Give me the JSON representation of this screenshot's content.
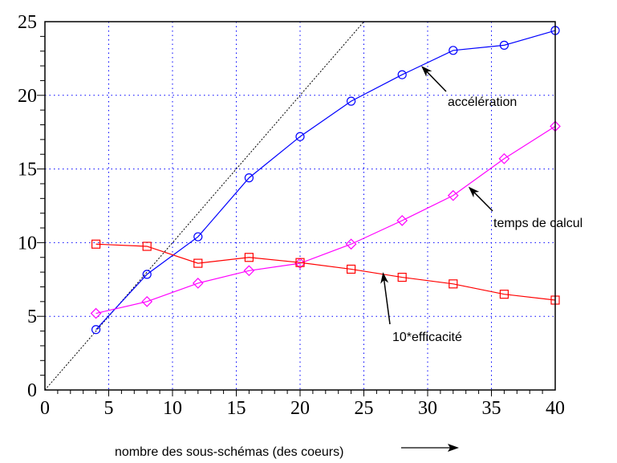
{
  "chart_data": {
    "type": "line",
    "title": "",
    "xlabel": "nombre des sous-schémas (des coeurs)",
    "ylabel": "",
    "xlim": [
      0,
      40
    ],
    "ylim": [
      0,
      25
    ],
    "grid": true,
    "xticks": [
      "0",
      "5",
      "10",
      "15",
      "20",
      "25",
      "30",
      "35",
      "40"
    ],
    "yticks": [
      "0",
      "5",
      "10",
      "15",
      "20",
      "25"
    ],
    "x": [
      4,
      8,
      12,
      16,
      20,
      24,
      28,
      32,
      36,
      40
    ],
    "series": [
      {
        "name": "accélération",
        "marker": "circle",
        "color": "#0000ff",
        "values": [
          4.1,
          7.85,
          10.4,
          14.4,
          17.2,
          19.6,
          21.4,
          23.05,
          23.4,
          24.4
        ]
      },
      {
        "name": "temps de calcul",
        "marker": "diamond",
        "color": "#ff00ff",
        "values": [
          5.2,
          6.0,
          7.25,
          8.1,
          8.6,
          9.9,
          11.5,
          13.2,
          15.7,
          17.9
        ]
      },
      {
        "name": "10*efficacité",
        "marker": "square",
        "color": "#ff0000",
        "values": [
          9.9,
          9.75,
          8.6,
          9.0,
          8.65,
          8.2,
          7.65,
          7.2,
          6.5,
          6.1
        ]
      }
    ],
    "reference_line": {
      "name": "y = x",
      "x": [
        0,
        25
      ],
      "y": [
        0,
        25
      ],
      "color": "#000000"
    },
    "annotations": [
      {
        "text": "accélération",
        "points_to": [
          29.5,
          22.0
        ]
      },
      {
        "text": "temps de calcul",
        "points_to": [
          33.2,
          13.8
        ]
      },
      {
        "text": "10*efficacité",
        "points_to": [
          26.5,
          8.0
        ]
      }
    ]
  }
}
